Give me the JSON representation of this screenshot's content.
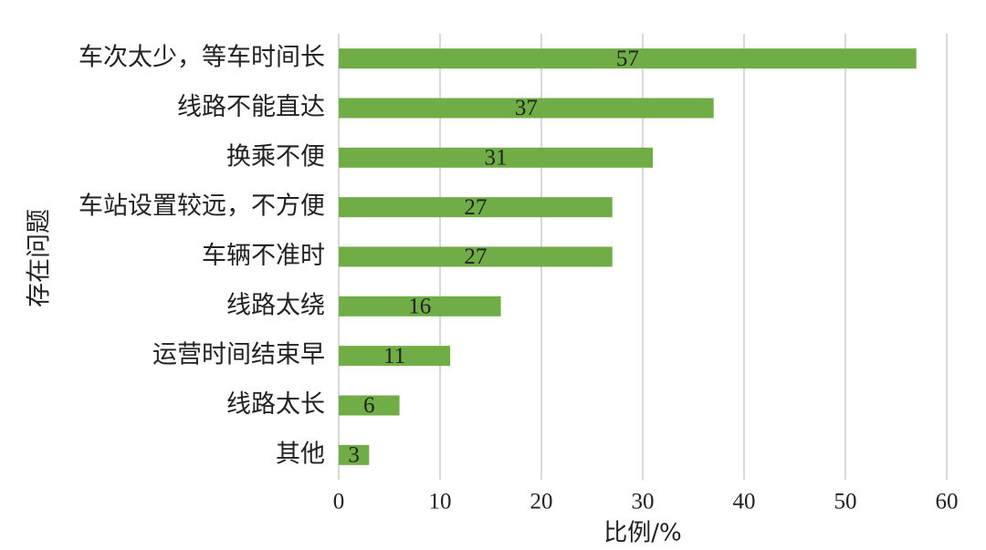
{
  "chart_data": {
    "type": "bar",
    "orientation": "horizontal",
    "title": "",
    "xlabel": "比例/%",
    "ylabel": "存在问题",
    "categories": [
      "车次太少，等车时间长",
      "线路不能直达",
      "换乘不便",
      "车站设置较远，不方便",
      "车辆不准时",
      "线路太绕",
      "运营时间结束早",
      "线路太长",
      "其他"
    ],
    "values": [
      57,
      37,
      31,
      27,
      27,
      16,
      11,
      6,
      3
    ],
    "xlim": [
      0,
      60
    ],
    "xticks": [
      "0",
      "10",
      "20",
      "30",
      "40",
      "50",
      "60"
    ],
    "grid": "vertical",
    "bar_color": "#70ad47",
    "data_labels": [
      "57",
      "37",
      "31",
      "27",
      "27",
      "16",
      "11",
      "6",
      "3"
    ]
  }
}
